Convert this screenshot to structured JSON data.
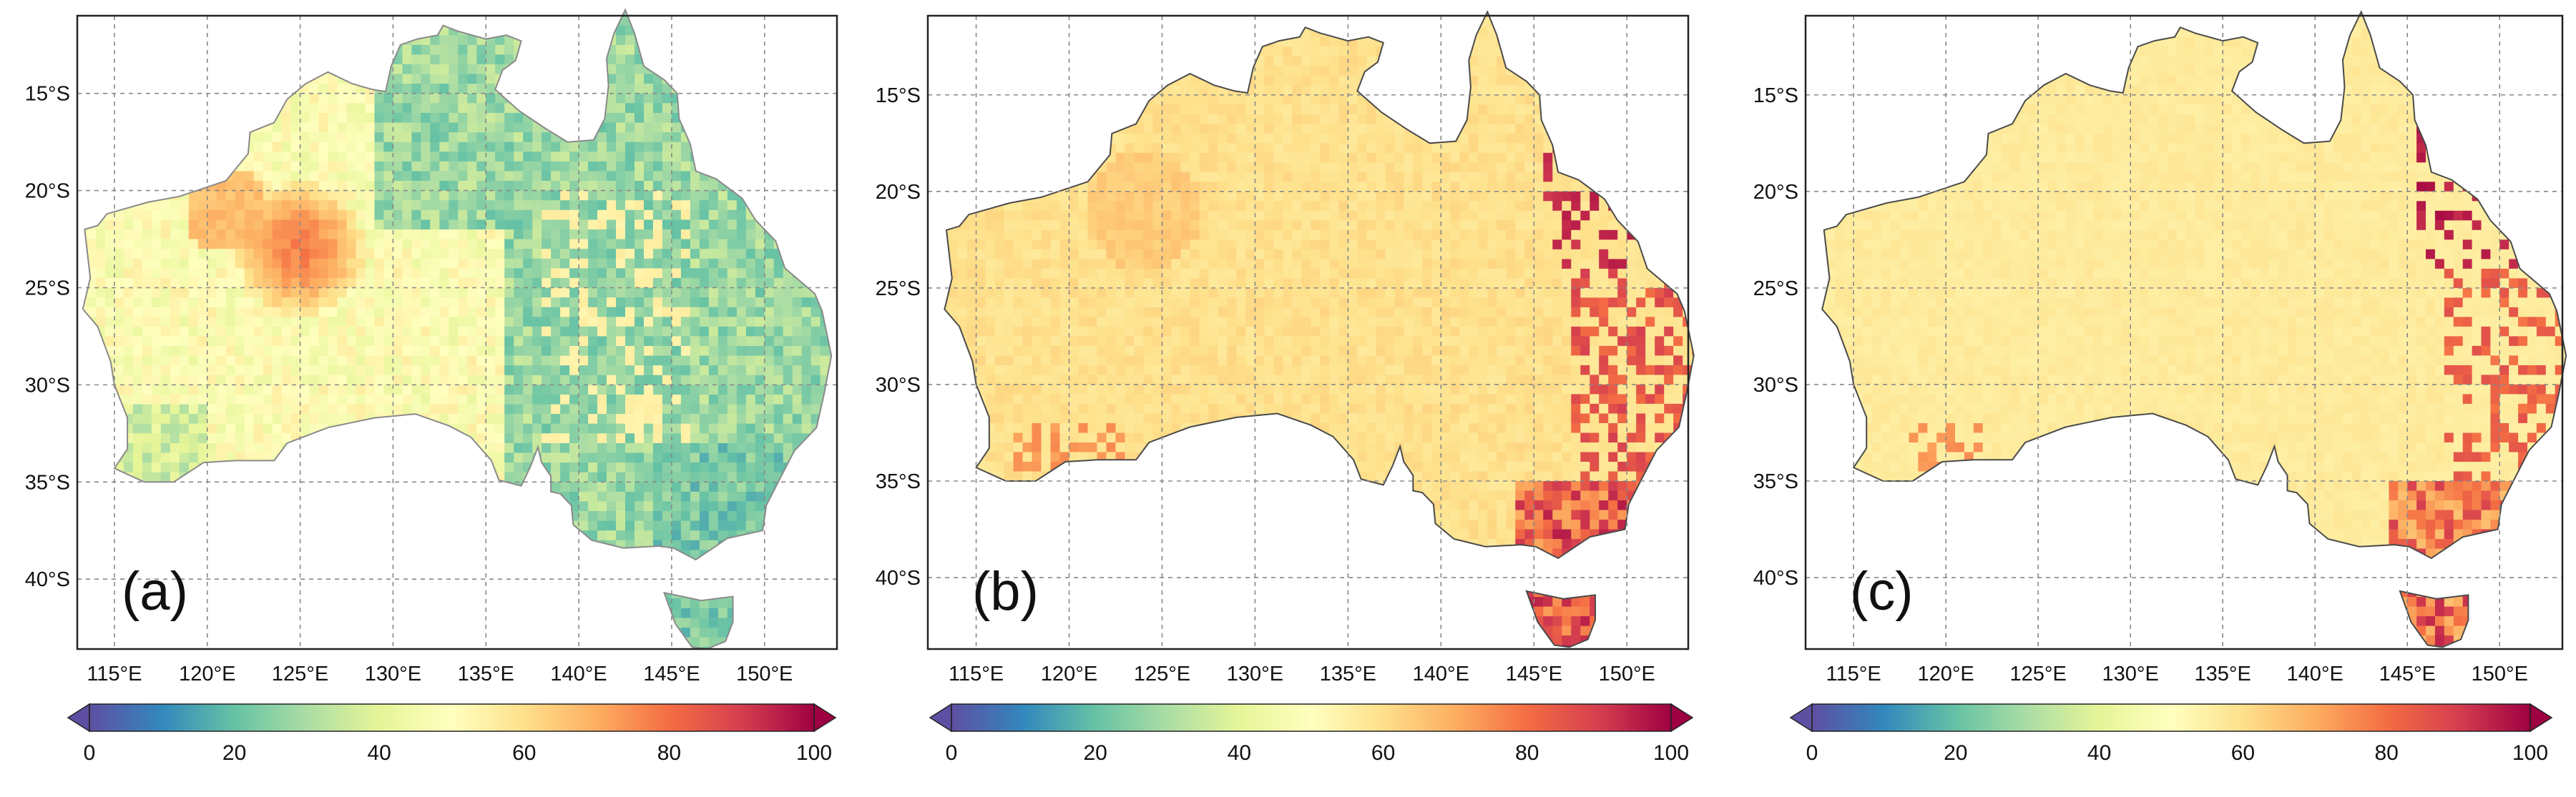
{
  "lat_labels": [
    "15°S",
    "20°S",
    "25°S",
    "30°S",
    "35°S",
    "40°S"
  ],
  "lat_values": [
    -15,
    -20,
    -25,
    -30,
    -35,
    -40
  ],
  "lon_labels": [
    "115°E",
    "120°E",
    "125°E",
    "130°E",
    "135°E",
    "140°E",
    "145°E",
    "150°E"
  ],
  "lon_values": [
    115,
    120,
    125,
    130,
    135,
    140,
    145,
    150
  ],
  "colorbar": {
    "ticks": [
      "0",
      "20",
      "40",
      "60",
      "80",
      "100"
    ],
    "tick_values": [
      0,
      20,
      40,
      60,
      80,
      100
    ],
    "colormap": "Spectral_r",
    "stops": [
      "#5e4fa2",
      "#3288bd",
      "#66c2a5",
      "#abdda4",
      "#e6f598",
      "#ffffbf",
      "#fee08b",
      "#fdae61",
      "#f46d43",
      "#d53e4f",
      "#9e0142"
    ],
    "extend": "both"
  },
  "panels": [
    {
      "label": "(a)",
      "dominant_value": 30,
      "hotspot_value": 70,
      "hotspot_center": [
        126,
        -23
      ]
    },
    {
      "label": "(b)",
      "dominant_value": 58,
      "hotspot_value": 86,
      "hotspot_center": [
        147,
        -37
      ]
    },
    {
      "label": "(c)",
      "dominant_value": 55,
      "hotspot_value": 82,
      "hotspot_center": [
        147,
        -37
      ]
    }
  ]
}
